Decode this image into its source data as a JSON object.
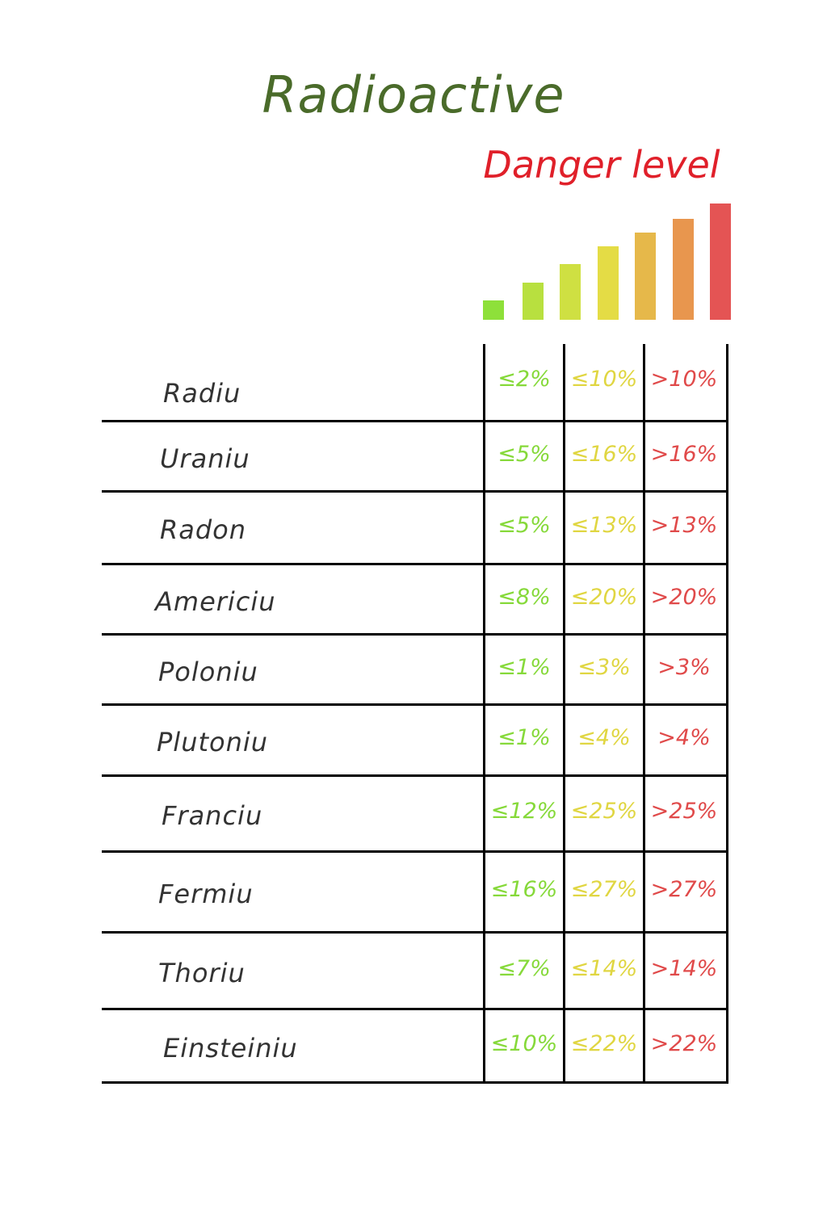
{
  "title": "Radioactive",
  "subtitle": "Danger level",
  "colors": {
    "title": "#4a6b2a",
    "subtitle": "#e0202a",
    "low": "#86d93a",
    "mid": "#e0d642",
    "high": "#e04a4a",
    "bars": [
      "#8ee03a",
      "#b8e03f",
      "#cfe042",
      "#e4dc45",
      "#e6b84a",
      "#e8964e",
      "#e45454"
    ]
  },
  "level_bars": [
    0.17,
    0.32,
    0.48,
    0.63,
    0.75,
    0.87,
    1.0
  ],
  "rows": [
    {
      "name": "Radiu",
      "low": "≤2%",
      "mid": "≤10%",
      "high": ">10%"
    },
    {
      "name": "Uraniu",
      "low": "≤5%",
      "mid": "≤16%",
      "high": ">16%"
    },
    {
      "name": "Radon",
      "low": "≤5%",
      "mid": "≤13%",
      "high": ">13%"
    },
    {
      "name": "Americiu",
      "low": "≤8%",
      "mid": "≤20%",
      "high": ">20%"
    },
    {
      "name": "Poloniu",
      "low": "≤1%",
      "mid": "≤3%",
      "high": ">3%"
    },
    {
      "name": "Plutoniu",
      "low": "≤1%",
      "mid": "≤4%",
      "high": ">4%"
    },
    {
      "name": "Franciu",
      "low": "≤12%",
      "mid": "≤25%",
      "high": ">25%"
    },
    {
      "name": "Fermiu",
      "low": "≤16%",
      "mid": "≤27%",
      "high": ">27%"
    },
    {
      "name": "Thoriu",
      "low": "≤7%",
      "mid": "≤14%",
      "high": ">14%"
    },
    {
      "name": "Einsteiniu",
      "low": "≤10%",
      "mid": "≤22%",
      "high": ">22%"
    }
  ]
}
